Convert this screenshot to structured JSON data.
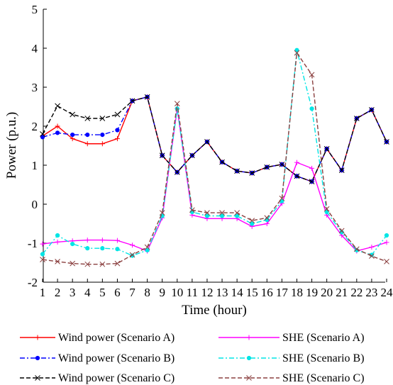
{
  "chart_data": {
    "type": "line",
    "title": "",
    "xlabel": "Time (hour)",
    "ylabel": "Power (p.u.)",
    "xlim": [
      1,
      24
    ],
    "ylim": [
      -2,
      5
    ],
    "xticks": [
      1,
      2,
      3,
      4,
      5,
      6,
      7,
      8,
      9,
      10,
      11,
      12,
      13,
      14,
      15,
      16,
      17,
      18,
      19,
      20,
      21,
      22,
      23,
      24
    ],
    "yticks": [
      -2,
      -1,
      0,
      1,
      2,
      3,
      4,
      5
    ],
    "grid": false,
    "legend_position": "bottom",
    "x": [
      1,
      2,
      3,
      4,
      5,
      6,
      7,
      8,
      9,
      10,
      11,
      12,
      13,
      14,
      15,
      16,
      17,
      18,
      19,
      20,
      21,
      22,
      23,
      24
    ],
    "series": [
      {
        "name": "Wind power (Scenario A)",
        "color": "#ff0000",
        "dash": "solid",
        "marker": "plus",
        "values": [
          1.75,
          2.0,
          1.68,
          1.55,
          1.55,
          1.68,
          2.65,
          2.75,
          1.25,
          0.82,
          1.25,
          1.6,
          1.08,
          0.85,
          0.8,
          0.95,
          1.02,
          0.72,
          0.58,
          1.42,
          0.87,
          2.2,
          2.42,
          1.6
        ]
      },
      {
        "name": "Wind power (Scenario B)",
        "color": "#0000ff",
        "dash": "dashdot",
        "marker": "dot",
        "values": [
          1.72,
          1.83,
          1.78,
          1.78,
          1.78,
          1.9,
          2.65,
          2.75,
          1.25,
          0.82,
          1.25,
          1.6,
          1.08,
          0.85,
          0.8,
          0.95,
          1.02,
          0.72,
          0.58,
          1.42,
          0.87,
          2.2,
          2.42,
          1.6
        ]
      },
      {
        "name": "Wind power (Scenario C)",
        "color": "#000000",
        "dash": "dash",
        "marker": "x",
        "values": [
          1.8,
          2.52,
          2.3,
          2.2,
          2.2,
          2.3,
          2.65,
          2.75,
          1.25,
          0.82,
          1.25,
          1.6,
          1.08,
          0.85,
          0.8,
          0.95,
          1.02,
          0.72,
          0.58,
          1.42,
          0.87,
          2.2,
          2.42,
          1.6
        ]
      },
      {
        "name": "SHE (Scenario A)",
        "color": "#ff00ff",
        "dash": "solid",
        "marker": "plus",
        "values": [
          -1.02,
          -0.97,
          -0.94,
          -0.92,
          -0.92,
          -0.93,
          -1.05,
          -1.2,
          -0.35,
          2.45,
          -0.28,
          -0.37,
          -0.37,
          -0.37,
          -0.57,
          -0.5,
          0.02,
          1.07,
          0.92,
          -0.28,
          -0.8,
          -1.2,
          -1.1,
          -0.98
        ]
      },
      {
        "name": "SHE (Scenario B)",
        "color": "#00e5e5",
        "dash": "dashdot",
        "marker": "dot",
        "values": [
          -1.28,
          -0.8,
          -1.02,
          -1.13,
          -1.13,
          -1.15,
          -1.32,
          -1.18,
          -0.3,
          2.45,
          -0.2,
          -0.3,
          -0.3,
          -0.3,
          -0.5,
          -0.4,
          0.08,
          3.95,
          2.45,
          -0.2,
          -0.72,
          -1.18,
          -1.3,
          -0.8
        ]
      },
      {
        "name": "SHE (Scenario C)",
        "color": "#8b4040",
        "dash": "dash",
        "marker": "x",
        "values": [
          -1.42,
          -1.47,
          -1.52,
          -1.54,
          -1.54,
          -1.52,
          -1.3,
          -1.1,
          -0.22,
          2.58,
          -0.15,
          -0.22,
          -0.22,
          -0.22,
          -0.42,
          -0.35,
          0.15,
          3.88,
          3.32,
          -0.12,
          -0.68,
          -1.15,
          -1.33,
          -1.47
        ]
      }
    ]
  }
}
